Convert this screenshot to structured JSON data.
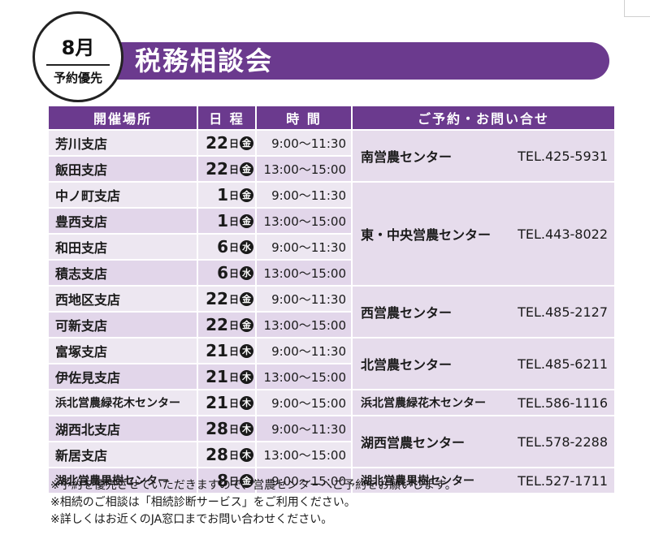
{
  "header": {
    "month": "8月",
    "priority": "予約優先",
    "title": "税務相談会"
  },
  "table": {
    "headers": [
      "開催場所",
      "日 程",
      "時 間",
      "ご予約・お問い合せ"
    ],
    "rows": [
      {
        "place": "芳川支店",
        "day": "22",
        "nichi": "日",
        "dow": "金",
        "time": "9:00〜11:30"
      },
      {
        "place": "飯田支店",
        "day": "22",
        "nichi": "日",
        "dow": "金",
        "time": "13:00〜15:00"
      },
      {
        "place": "中ノ町支店",
        "day": "1",
        "nichi": "日",
        "dow": "金",
        "time": "9:00〜11:30"
      },
      {
        "place": "豊西支店",
        "day": "1",
        "nichi": "日",
        "dow": "金",
        "time": "13:00〜15:00"
      },
      {
        "place": "和田支店",
        "day": "6",
        "nichi": "日",
        "dow": "水",
        "time": "9:00〜11:30"
      },
      {
        "place": "積志支店",
        "day": "6",
        "nichi": "日",
        "dow": "水",
        "time": "13:00〜15:00"
      },
      {
        "place": "西地区支店",
        "day": "22",
        "nichi": "日",
        "dow": "金",
        "time": "9:00〜11:30"
      },
      {
        "place": "可新支店",
        "day": "22",
        "nichi": "日",
        "dow": "金",
        "time": "13:00〜15:00"
      },
      {
        "place": "富塚支店",
        "day": "21",
        "nichi": "日",
        "dow": "木",
        "time": "9:00〜11:30"
      },
      {
        "place": "伊佐見支店",
        "day": "21",
        "nichi": "日",
        "dow": "木",
        "time": "13:00〜15:00"
      },
      {
        "place": "浜北営農緑花木センター",
        "day": "21",
        "nichi": "日",
        "dow": "木",
        "time": "9:00〜15:00"
      },
      {
        "place": "湖西北支店",
        "day": "28",
        "nichi": "日",
        "dow": "木",
        "time": "9:00〜11:30"
      },
      {
        "place": "新居支店",
        "day": "28",
        "nichi": "日",
        "dow": "木",
        "time": "13:00〜15:00"
      },
      {
        "place": "湖北営農果樹センター",
        "day": "8",
        "nichi": "日",
        "dow": "金",
        "time": "9:00〜15:00"
      }
    ],
    "contacts": [
      {
        "name": "南営農センター",
        "tel": "TEL.425-5931"
      },
      {
        "name": "東・中央営農センター",
        "tel": "TEL.443-8022"
      },
      {
        "name": "西営農センター",
        "tel": "TEL.485-2127"
      },
      {
        "name": "北営農センター",
        "tel": "TEL.485-6211"
      },
      {
        "name": "浜北営農緑花木センター",
        "tel": "TEL.586-1116"
      },
      {
        "name": "湖西営農センター",
        "tel": "TEL.578-2288"
      },
      {
        "name": "湖北営農果樹センター",
        "tel": "TEL.527-1711"
      }
    ]
  },
  "notes": [
    "※予約を優先させていただきますので、営農センターへご予約をお願いします。",
    "※相続のご相談は「相続診断サービス」をご利用ください。",
    "※詳しくはお近くのJA窓口までお問い合わせください。"
  ]
}
